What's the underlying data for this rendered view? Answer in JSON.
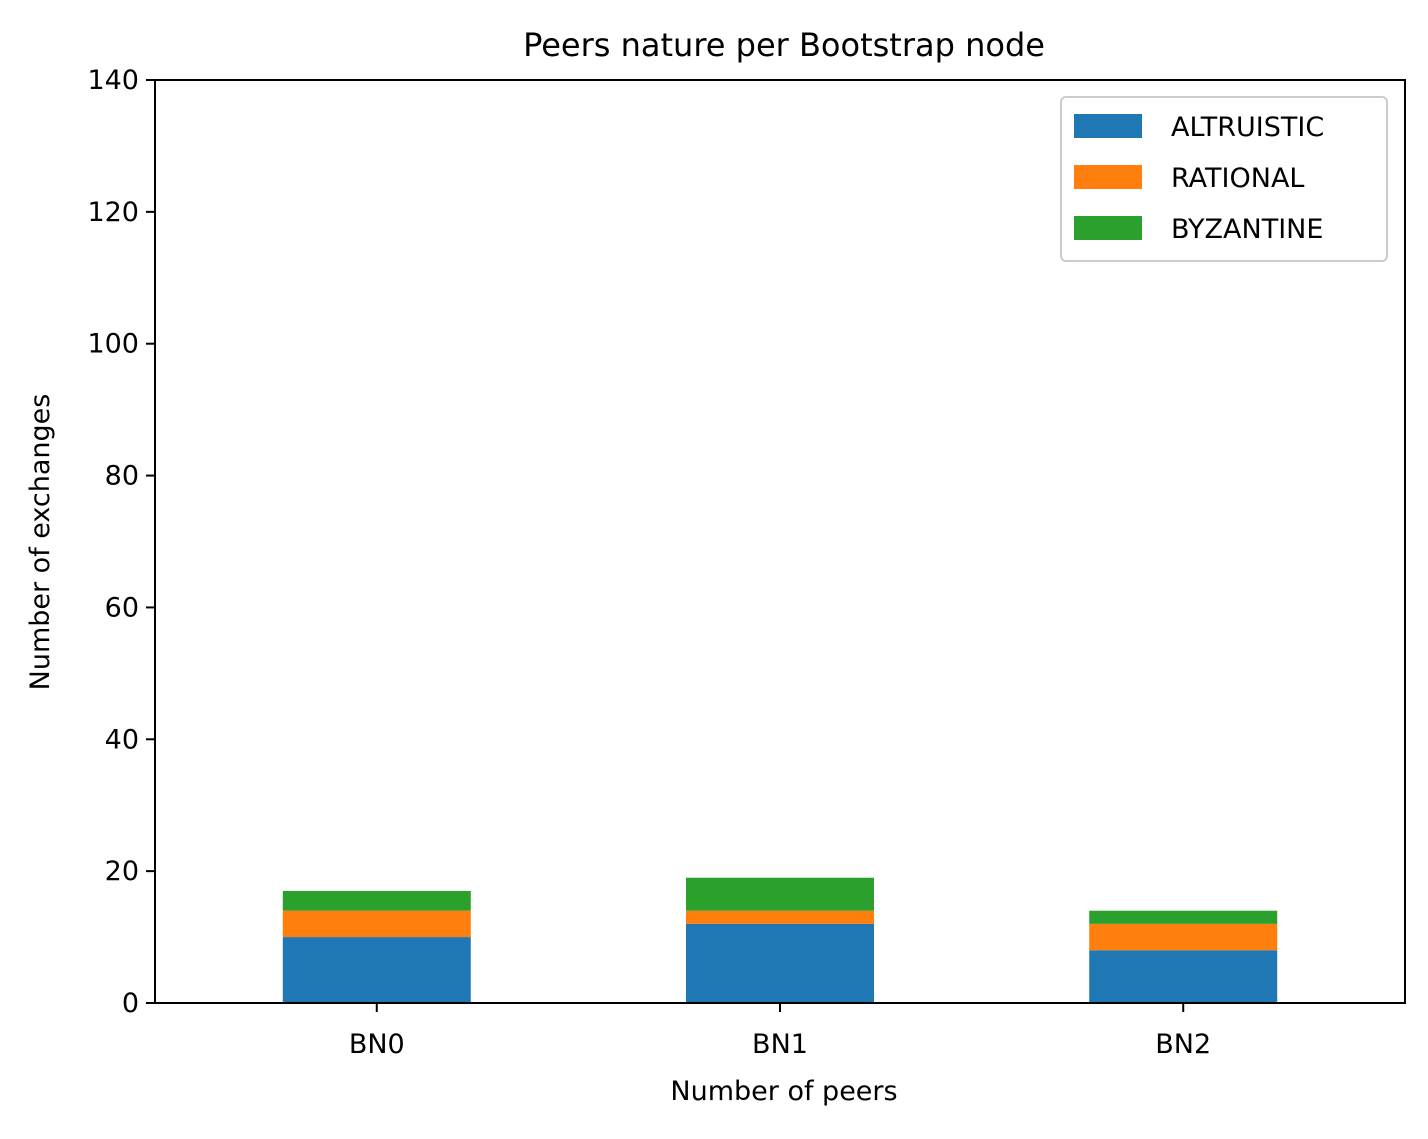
{
  "chart_data": {
    "type": "bar",
    "stacked": true,
    "title": "Peers nature per Bootstrap node",
    "xlabel": "Number of peers",
    "ylabel": "Number of exchanges",
    "categories": [
      "BN0",
      "BN1",
      "BN2"
    ],
    "series": [
      {
        "name": "ALTRUISTIC",
        "color": "#1f77b4",
        "values": [
          10,
          12,
          8
        ]
      },
      {
        "name": "RATIONAL",
        "color": "#ff7f0e",
        "values": [
          4,
          2,
          4
        ]
      },
      {
        "name": "BYZANTINE",
        "color": "#2ca02c",
        "values": [
          3,
          5,
          2
        ]
      }
    ],
    "ylim": [
      0,
      140
    ],
    "yticks": [
      0,
      20,
      40,
      60,
      80,
      100,
      120,
      140
    ],
    "grid": false,
    "legend_position": "top-right"
  }
}
